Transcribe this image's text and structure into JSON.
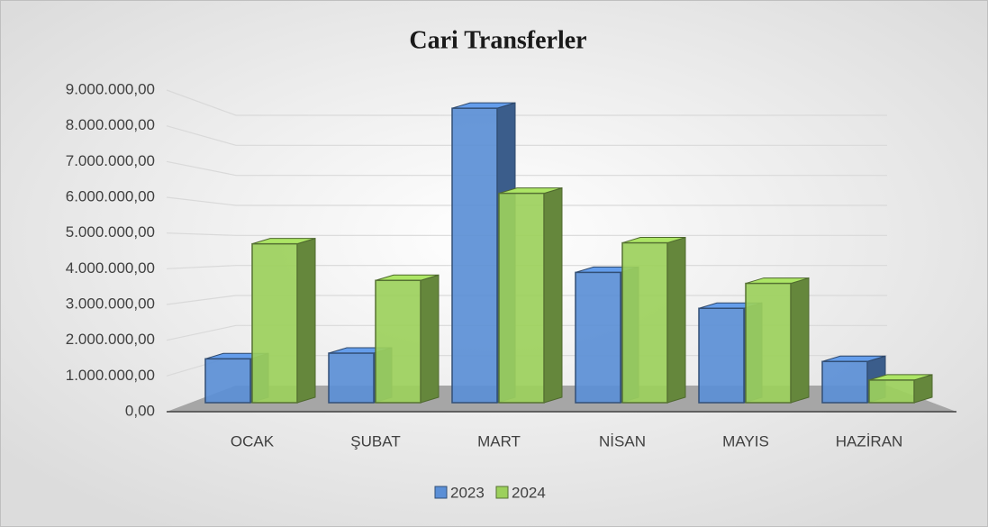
{
  "chart_data": {
    "type": "bar3d",
    "title": "Cari Transferler",
    "categories": [
      "OCAK",
      "ŞUBAT",
      "MART",
      "NİSAN",
      "MAYIS",
      "HAZİRAN"
    ],
    "series": [
      {
        "name": "2023",
        "color": "#5b8fd6",
        "values": [
          1320000,
          1490000,
          8860000,
          3920000,
          2840000,
          1240000
        ]
      },
      {
        "name": "2024",
        "color": "#9cd05c",
        "values": [
          4780000,
          3680000,
          6300000,
          4810000,
          3590000,
          680000
        ]
      }
    ],
    "ylim": [
      0,
      9000000
    ],
    "yticks": [
      {
        "value": 0,
        "label": "0,00"
      },
      {
        "value": 1000000,
        "label": "1.000.000,00"
      },
      {
        "value": 2000000,
        "label": "2.000.000,00"
      },
      {
        "value": 3000000,
        "label": "3.000.000,00"
      },
      {
        "value": 4000000,
        "label": "4.000.000,00"
      },
      {
        "value": 5000000,
        "label": "5.000.000,00"
      },
      {
        "value": 6000000,
        "label": "6.000.000,00"
      },
      {
        "value": 7000000,
        "label": "7.000.000,00"
      },
      {
        "value": 8000000,
        "label": "8.000.000,00"
      },
      {
        "value": 9000000,
        "label": "9.000.000,00"
      }
    ],
    "grid": true,
    "legend": "bottom"
  }
}
